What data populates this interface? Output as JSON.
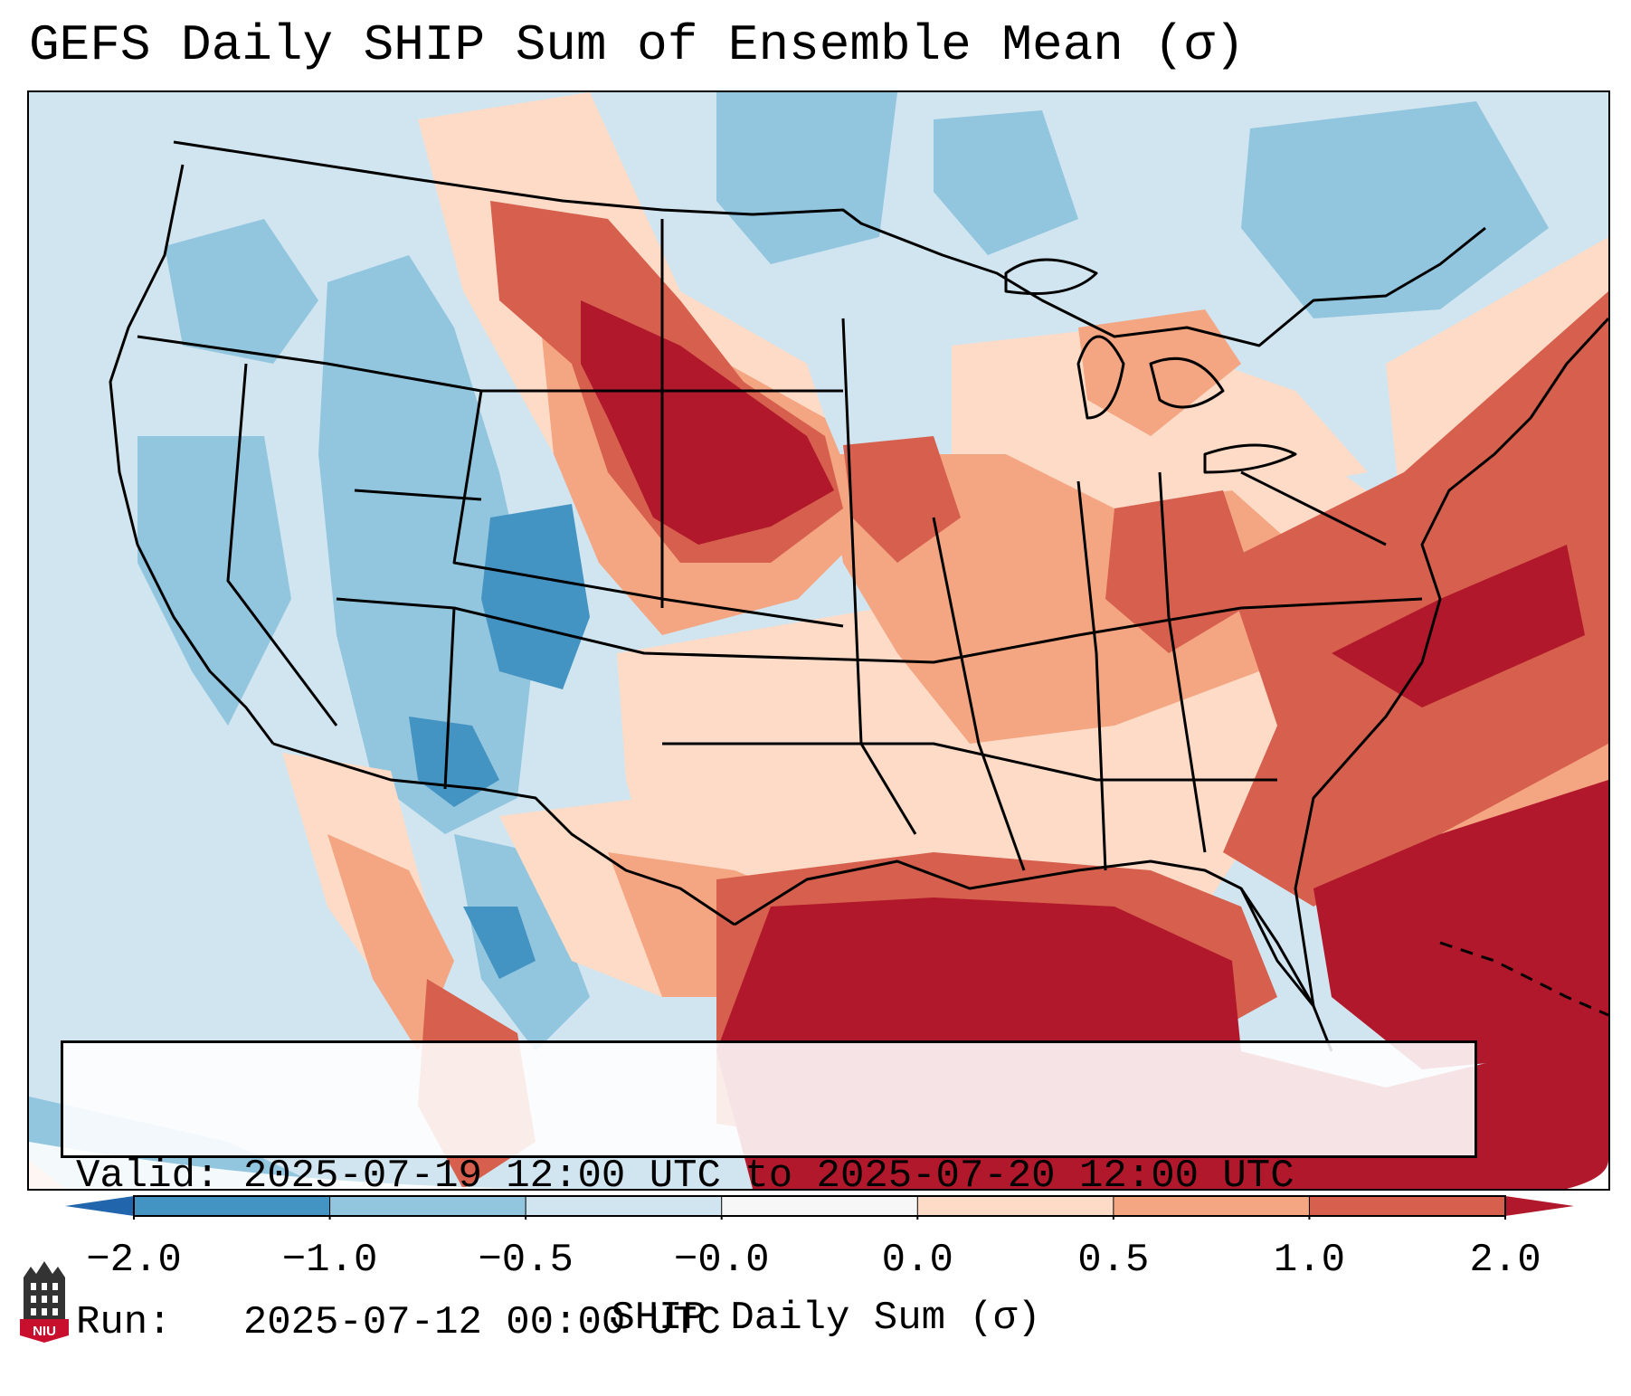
{
  "title": "GEFS Daily SHIP Sum of Ensemble Mean (σ)",
  "info": {
    "valid": "Valid: 2025-07-19 12:00 UTC to 2025-07-20 12:00 UTC",
    "run": "Run:   2025-07-12 00:00 UTC"
  },
  "colorbar": {
    "label": "SHIP Daily Sum (σ)",
    "ticks": [
      "−2.0",
      "−1.0",
      "−0.5",
      "−0.0",
      "0.0",
      "0.5",
      "1.0",
      "2.0"
    ],
    "bins": [
      {
        "color": "#4393c3"
      },
      {
        "color": "#92c5de"
      },
      {
        "color": "#d1e5f0"
      },
      {
        "color": "#f7f7f7"
      },
      {
        "color": "#fddbc7"
      },
      {
        "color": "#f4a582"
      },
      {
        "color": "#d6604d"
      }
    ],
    "under_color": "#2166ac",
    "over_color": "#b2182b"
  },
  "map": {
    "projection": "Lambert conformal, contiguous United States",
    "field": "SHIP daily sum anomaly (σ)"
  },
  "logo": {
    "text": "NIU"
  }
}
